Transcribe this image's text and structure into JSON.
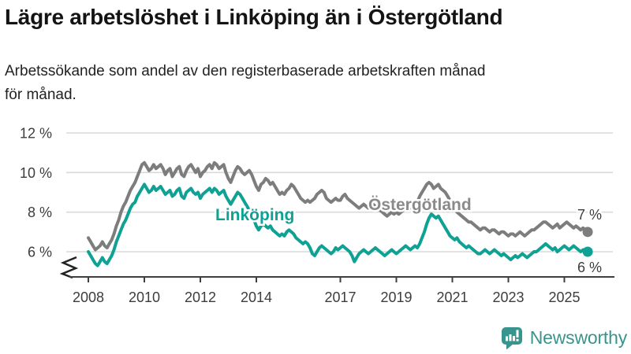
{
  "title": "Lägre arbetslöshet i Linköping än i Östergötland",
  "subtitle_lines": [
    "Arbetssökande som andel av den registerbaserade arbetskraften månad",
    "för månad."
  ],
  "chart_data": {
    "type": "line",
    "unit": "%",
    "frequency": "monthly",
    "x_start_year": 2008,
    "x_end_label_year": "2025 (late)",
    "axis_break": true,
    "ylim_shown": [
      5,
      12
    ],
    "grid": "horizontal",
    "yticks": [
      {
        "value": 12,
        "label": "12 %"
      },
      {
        "value": 10,
        "label": "10 %"
      },
      {
        "value": 8,
        "label": "8 %"
      },
      {
        "value": 6,
        "label": "6 %"
      }
    ],
    "xticks": [
      {
        "value": 2008,
        "label": "2008"
      },
      {
        "value": 2010,
        "label": "2010"
      },
      {
        "value": 2012,
        "label": "2012"
      },
      {
        "value": 2014,
        "label": "2014"
      },
      {
        "value": 2017,
        "label": "2017"
      },
      {
        "value": 2019,
        "label": "2019"
      },
      {
        "value": 2021,
        "label": "2021"
      },
      {
        "value": 2023,
        "label": "2023"
      },
      {
        "value": 2025,
        "label": "2025"
      }
    ],
    "series": [
      {
        "name": "Östergötland",
        "color": "#7d7d7d",
        "label_color": "#8a8a8a",
        "end_label": "7 %",
        "end_value": 7.0,
        "values": [
          6.7,
          6.5,
          6.3,
          6.1,
          6.2,
          6.3,
          6.5,
          6.3,
          6.2,
          6.4,
          6.6,
          6.9,
          7.3,
          7.6,
          8.0,
          8.3,
          8.5,
          8.8,
          9.1,
          9.3,
          9.5,
          9.8,
          10.1,
          10.4,
          10.5,
          10.3,
          10.1,
          10.2,
          10.4,
          10.2,
          10.3,
          10.4,
          10.2,
          9.9,
          10.1,
          10.2,
          9.8,
          10.0,
          10.2,
          10.3,
          9.9,
          9.8,
          10.1,
          10.3,
          10.4,
          10.2,
          10.0,
          10.2,
          9.8,
          10.0,
          10.1,
          10.3,
          10.4,
          10.2,
          10.5,
          10.4,
          10.2,
          10.3,
          10.4,
          10.0,
          9.7,
          9.5,
          9.8,
          10.1,
          10.3,
          10.2,
          10.0,
          9.9,
          10.0,
          10.1,
          9.9,
          9.6,
          9.3,
          9.1,
          9.4,
          9.5,
          9.7,
          9.6,
          9.4,
          9.5,
          9.3,
          9.1,
          8.9,
          9.0,
          8.9,
          9.1,
          9.2,
          9.4,
          9.3,
          9.1,
          8.9,
          8.7,
          8.6,
          8.5,
          8.6,
          8.5,
          8.6,
          8.7,
          8.9,
          9.0,
          9.1,
          9.0,
          8.7,
          8.6,
          8.5,
          8.6,
          8.7,
          8.6,
          8.6,
          8.8,
          8.9,
          8.7,
          8.6,
          8.5,
          8.4,
          8.3,
          8.2,
          8.3,
          8.4,
          8.3,
          8.2,
          8.3,
          8.4,
          8.3,
          8.2,
          8.1,
          8.0,
          7.9,
          7.8,
          7.9,
          8.0,
          7.9,
          8.0,
          7.9,
          8.0,
          8.1,
          8.2,
          8.3,
          8.2,
          8.3,
          8.4,
          8.5,
          8.8,
          9.0,
          9.2,
          9.4,
          9.5,
          9.4,
          9.2,
          9.3,
          9.4,
          9.2,
          9.1,
          9.0,
          8.8,
          8.6,
          8.4,
          8.2,
          8.0,
          7.9,
          7.8,
          7.7,
          7.6,
          7.5,
          7.5,
          7.4,
          7.3,
          7.2,
          7.1,
          7.2,
          7.2,
          7.1,
          7.0,
          7.1,
          7.1,
          7.0,
          6.9,
          7.0,
          7.0,
          6.9,
          6.8,
          6.9,
          6.9,
          6.8,
          6.9,
          7.0,
          6.9,
          6.8,
          6.9,
          7.0,
          7.1,
          7.1,
          7.2,
          7.3,
          7.4,
          7.5,
          7.5,
          7.4,
          7.3,
          7.2,
          7.3,
          7.4,
          7.2,
          7.3,
          7.4,
          7.5,
          7.4,
          7.3,
          7.2,
          7.3,
          7.2,
          7.1,
          7.2,
          7.1,
          7.0
        ]
      },
      {
        "name": "Linköping",
        "color": "#0fa294",
        "label_color": "#0fa294",
        "end_label": "6 %",
        "end_value": 6.0,
        "values": [
          6.0,
          5.8,
          5.6,
          5.4,
          5.3,
          5.5,
          5.7,
          5.5,
          5.4,
          5.6,
          5.8,
          6.1,
          6.5,
          6.8,
          7.1,
          7.4,
          7.6,
          7.9,
          8.2,
          8.4,
          8.5,
          8.8,
          9.0,
          9.2,
          9.4,
          9.2,
          9.0,
          9.1,
          9.3,
          9.1,
          9.2,
          9.3,
          9.1,
          8.9,
          9.0,
          9.1,
          8.8,
          8.9,
          9.1,
          9.2,
          8.8,
          8.7,
          9.0,
          9.1,
          9.2,
          9.0,
          8.9,
          9.0,
          8.7,
          8.9,
          9.0,
          9.1,
          9.2,
          9.0,
          9.2,
          9.1,
          8.9,
          9.0,
          9.1,
          8.8,
          8.6,
          8.4,
          8.6,
          8.8,
          9.0,
          8.9,
          8.7,
          8.5,
          8.3,
          8.1,
          7.9,
          7.6,
          7.3,
          7.1,
          7.3,
          7.4,
          7.3,
          7.2,
          7.3,
          7.1,
          7.0,
          6.9,
          6.8,
          6.9,
          6.8,
          7.0,
          7.1,
          7.0,
          6.9,
          6.7,
          6.6,
          6.5,
          6.4,
          6.5,
          6.4,
          6.2,
          5.9,
          5.8,
          6.0,
          6.2,
          6.3,
          6.2,
          6.1,
          6.0,
          5.9,
          6.0,
          6.2,
          6.1,
          6.2,
          6.3,
          6.2,
          6.1,
          6.0,
          5.8,
          5.5,
          5.7,
          5.9,
          6.0,
          6.1,
          6.0,
          5.9,
          6.0,
          6.1,
          6.2,
          6.1,
          6.0,
          5.9,
          5.8,
          5.9,
          6.0,
          6.1,
          6.0,
          5.9,
          6.0,
          6.1,
          6.2,
          6.3,
          6.2,
          6.1,
          6.2,
          6.3,
          6.2,
          6.4,
          6.7,
          7.0,
          7.4,
          7.7,
          7.9,
          7.8,
          7.7,
          7.8,
          7.6,
          7.4,
          7.2,
          7.0,
          6.8,
          6.7,
          6.6,
          6.7,
          6.5,
          6.4,
          6.3,
          6.2,
          6.3,
          6.2,
          6.1,
          6.0,
          5.9,
          5.9,
          6.0,
          6.1,
          6.0,
          5.9,
          6.0,
          6.1,
          6.0,
          5.9,
          5.8,
          5.9,
          5.8,
          5.7,
          5.6,
          5.7,
          5.8,
          5.7,
          5.8,
          5.9,
          5.8,
          5.7,
          5.8,
          5.9,
          6.0,
          6.0,
          6.1,
          6.2,
          6.3,
          6.4,
          6.3,
          6.2,
          6.1,
          6.2,
          6.0,
          6.1,
          6.2,
          6.3,
          6.2,
          6.1,
          6.2,
          6.3,
          6.2,
          6.1,
          6.0,
          6.1,
          6.1,
          6.0
        ]
      }
    ]
  },
  "footer": {
    "brand": "Newsworthy",
    "brand_color": "#3a948e"
  }
}
